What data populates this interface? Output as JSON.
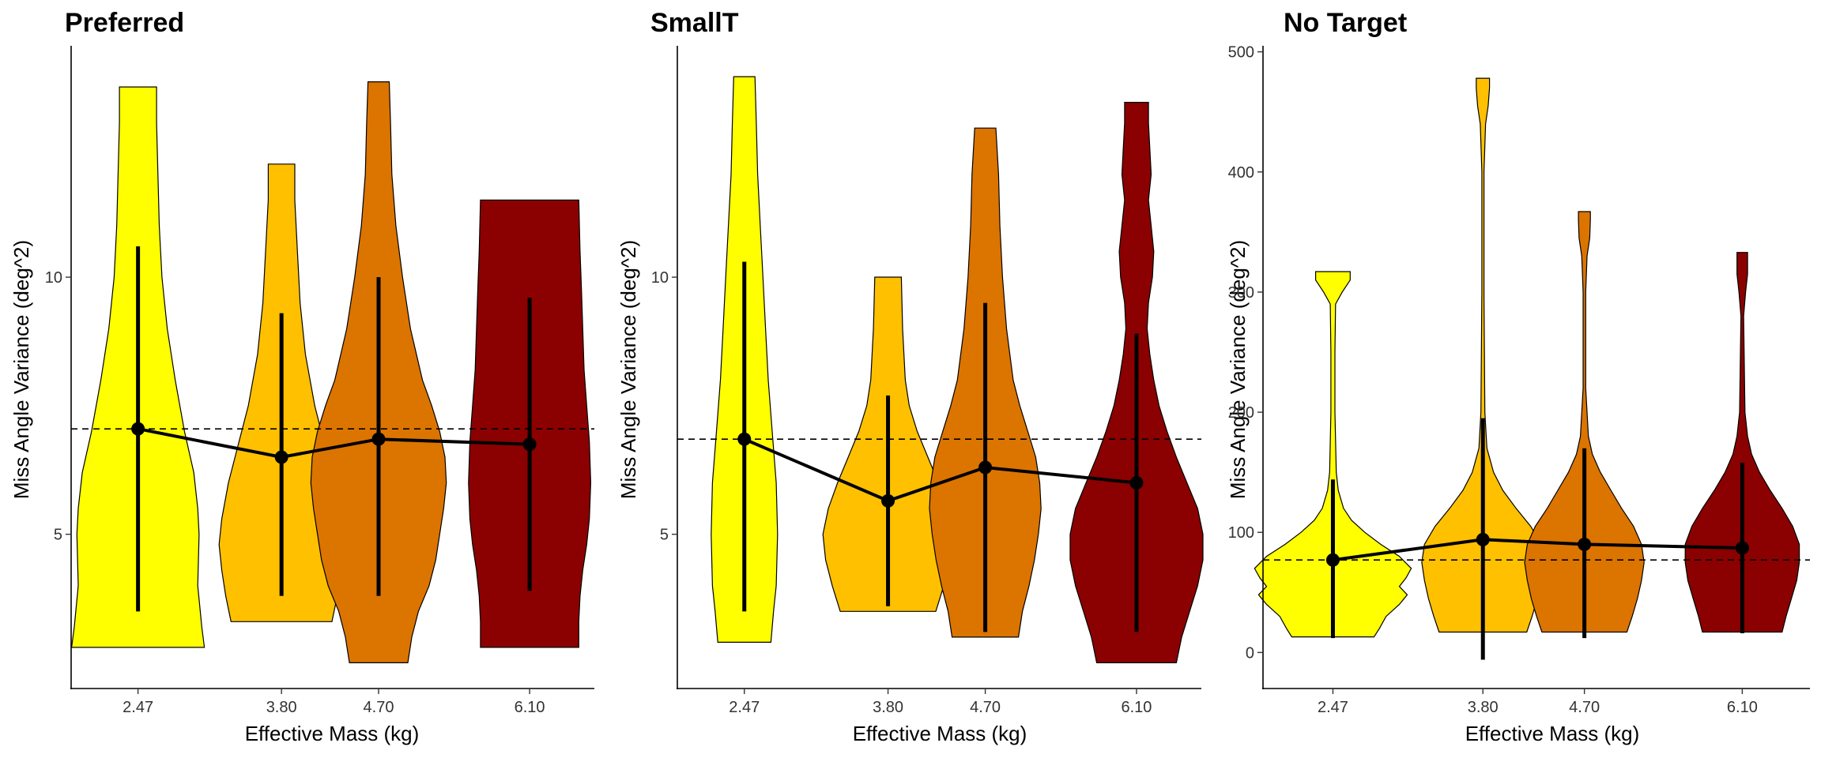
{
  "chart_data": [
    {
      "type": "violin",
      "title": "Preferred",
      "xlabel": "Effective Mass (kg)",
      "ylabel": "Miss Angle Variance (deg^2)",
      "x_tick_labels": [
        "2.47",
        "3.80",
        "4.70",
        "6.10"
      ],
      "x": [
        2.47,
        3.8,
        4.7,
        6.1
      ],
      "xlim": [
        1.85,
        6.7
      ],
      "ylim": [
        2.0,
        14.5
      ],
      "y_ticks": [
        5,
        10
      ],
      "y_tick_labels": [
        "5",
        "10"
      ],
      "reference_line": 7.05,
      "summary_line": {
        "means": [
          7.05,
          6.5,
          6.85,
          6.75
        ],
        "error_low": [
          3.5,
          3.8,
          3.8,
          3.9
        ],
        "error_high": [
          10.6,
          9.3,
          10.0,
          9.6
        ]
      },
      "violins": [
        {
          "x": 2.47,
          "color": "#FFFF00",
          "min": 2.8,
          "max": 13.7,
          "profile": [
            [
              2.8,
              0.5
            ],
            [
              3.2,
              0.48
            ],
            [
              4.0,
              0.45
            ],
            [
              5.0,
              0.46
            ],
            [
              5.5,
              0.45
            ],
            [
              6.2,
              0.42
            ],
            [
              7.0,
              0.35
            ],
            [
              8.0,
              0.28
            ],
            [
              9.0,
              0.22
            ],
            [
              10.0,
              0.18
            ],
            [
              11.0,
              0.16
            ],
            [
              12.0,
              0.15
            ],
            [
              13.0,
              0.14
            ],
            [
              13.7,
              0.14
            ]
          ]
        },
        {
          "x": 3.8,
          "color": "#FFC000",
          "min": 3.3,
          "max": 12.2,
          "profile": [
            [
              3.3,
              0.38
            ],
            [
              3.8,
              0.42
            ],
            [
              4.3,
              0.45
            ],
            [
              4.8,
              0.47
            ],
            [
              5.3,
              0.45
            ],
            [
              6.0,
              0.4
            ],
            [
              6.8,
              0.32
            ],
            [
              7.5,
              0.25
            ],
            [
              8.5,
              0.18
            ],
            [
              9.5,
              0.14
            ],
            [
              10.5,
              0.12
            ],
            [
              11.5,
              0.1
            ],
            [
              12.2,
              0.1
            ]
          ]
        },
        {
          "x": 4.7,
          "color": "#DC7400",
          "min": 2.5,
          "max": 13.8,
          "profile": [
            [
              2.5,
              0.22
            ],
            [
              3.0,
              0.25
            ],
            [
              3.5,
              0.3
            ],
            [
              4.0,
              0.38
            ],
            [
              4.5,
              0.43
            ],
            [
              5.0,
              0.46
            ],
            [
              5.5,
              0.49
            ],
            [
              6.0,
              0.51
            ],
            [
              6.5,
              0.5
            ],
            [
              7.0,
              0.46
            ],
            [
              7.5,
              0.4
            ],
            [
              8.0,
              0.33
            ],
            [
              9.0,
              0.24
            ],
            [
              10.0,
              0.18
            ],
            [
              11.0,
              0.13
            ],
            [
              12.0,
              0.1
            ],
            [
              13.0,
              0.09
            ],
            [
              13.8,
              0.08
            ]
          ]
        },
        {
          "x": 6.1,
          "color": "#8B0000",
          "min": 2.8,
          "max": 11.5,
          "profile": [
            [
              2.8,
              0.37
            ],
            [
              3.3,
              0.37
            ],
            [
              3.8,
              0.38
            ],
            [
              4.3,
              0.4
            ],
            [
              4.8,
              0.43
            ],
            [
              5.3,
              0.45
            ],
            [
              6.0,
              0.46
            ],
            [
              6.8,
              0.45
            ],
            [
              7.5,
              0.43
            ],
            [
              8.2,
              0.41
            ],
            [
              9.0,
              0.4
            ],
            [
              9.8,
              0.39
            ],
            [
              10.5,
              0.38
            ],
            [
              11.5,
              0.37
            ]
          ]
        }
      ]
    },
    {
      "type": "violin",
      "title": "SmallT",
      "xlabel": "Effective Mass (kg)",
      "ylabel": "Miss Angle Variance (deg^2)",
      "x_tick_labels": [
        "2.47",
        "3.80",
        "4.70",
        "6.10"
      ],
      "x": [
        2.47,
        3.8,
        4.7,
        6.1
      ],
      "xlim": [
        1.85,
        6.7
      ],
      "ylim": [
        2.0,
        14.5
      ],
      "y_ticks": [
        5,
        10
      ],
      "y_tick_labels": [
        "5",
        "10"
      ],
      "reference_line": 6.85,
      "summary_line": {
        "means": [
          6.85,
          5.65,
          6.3,
          6.0
        ],
        "error_low": [
          3.5,
          3.6,
          3.1,
          3.1
        ],
        "error_high": [
          10.3,
          7.7,
          9.5,
          8.9
        ]
      },
      "violins": [
        {
          "x": 2.47,
          "color": "#FFFF00",
          "min": 2.9,
          "max": 13.9,
          "profile": [
            [
              2.9,
              0.2
            ],
            [
              3.5,
              0.22
            ],
            [
              4.0,
              0.24
            ],
            [
              5.0,
              0.25
            ],
            [
              6.0,
              0.24
            ],
            [
              7.0,
              0.21
            ],
            [
              8.0,
              0.18
            ],
            [
              9.0,
              0.16
            ],
            [
              10.0,
              0.14
            ],
            [
              11.0,
              0.12
            ],
            [
              12.0,
              0.1
            ],
            [
              13.0,
              0.09
            ],
            [
              13.9,
              0.08
            ]
          ]
        },
        {
          "x": 3.8,
          "color": "#FFC000",
          "min": 3.5,
          "max": 10.0,
          "profile": [
            [
              3.5,
              0.36
            ],
            [
              4.0,
              0.42
            ],
            [
              4.5,
              0.47
            ],
            [
              5.0,
              0.49
            ],
            [
              5.5,
              0.45
            ],
            [
              6.0,
              0.38
            ],
            [
              6.5,
              0.3
            ],
            [
              7.0,
              0.22
            ],
            [
              7.5,
              0.16
            ],
            [
              8.0,
              0.13
            ],
            [
              9.0,
              0.11
            ],
            [
              10.0,
              0.1
            ]
          ]
        },
        {
          "x": 4.7,
          "color": "#DC7400",
          "min": 3.0,
          "max": 12.9,
          "profile": [
            [
              3.0,
              0.25
            ],
            [
              3.5,
              0.28
            ],
            [
              4.0,
              0.33
            ],
            [
              4.5,
              0.37
            ],
            [
              5.0,
              0.4
            ],
            [
              5.5,
              0.42
            ],
            [
              6.0,
              0.41
            ],
            [
              6.5,
              0.38
            ],
            [
              7.0,
              0.32
            ],
            [
              7.5,
              0.26
            ],
            [
              8.0,
              0.21
            ],
            [
              9.0,
              0.16
            ],
            [
              10.0,
              0.13
            ],
            [
              11.0,
              0.11
            ],
            [
              12.0,
              0.1
            ],
            [
              12.9,
              0.08
            ]
          ]
        },
        {
          "x": 6.1,
          "color": "#8B0000",
          "min": 2.5,
          "max": 13.4,
          "profile": [
            [
              2.5,
              0.3
            ],
            [
              3.0,
              0.34
            ],
            [
              3.5,
              0.4
            ],
            [
              4.0,
              0.46
            ],
            [
              4.5,
              0.5
            ],
            [
              5.0,
              0.5
            ],
            [
              5.5,
              0.46
            ],
            [
              6.0,
              0.38
            ],
            [
              6.5,
              0.3
            ],
            [
              7.0,
              0.23
            ],
            [
              7.5,
              0.17
            ],
            [
              8.0,
              0.13
            ],
            [
              8.5,
              0.1
            ],
            [
              9.0,
              0.08
            ],
            [
              9.5,
              0.09
            ],
            [
              10.0,
              0.12
            ],
            [
              10.5,
              0.13
            ],
            [
              11.0,
              0.11
            ],
            [
              11.5,
              0.09
            ],
            [
              12.0,
              0.11
            ],
            [
              12.5,
              0.1
            ],
            [
              13.0,
              0.09
            ],
            [
              13.4,
              0.09
            ]
          ]
        }
      ]
    },
    {
      "type": "violin",
      "title": "No Target",
      "xlabel": "Effective Mass (kg)",
      "ylabel": "Miss Angle Variance (deg^2)",
      "x_tick_labels": [
        "2.47",
        "3.80",
        "4.70",
        "6.10"
      ],
      "x": [
        2.47,
        3.8,
        4.7,
        6.1
      ],
      "xlim": [
        1.85,
        6.7
      ],
      "ylim": [
        -30,
        505
      ],
      "y_ticks": [
        0,
        100,
        200,
        300,
        400,
        500
      ],
      "y_tick_labels": [
        "0",
        "100",
        "200",
        "300",
        "400",
        "500"
      ],
      "reference_line": 77,
      "summary_line": {
        "means": [
          77,
          94,
          90,
          87
        ],
        "error_low": [
          12,
          -6,
          12,
          16
        ],
        "error_high": [
          144,
          195,
          170,
          158
        ]
      },
      "violins": [
        {
          "x": 2.47,
          "color": "#FFFF00",
          "min": 13,
          "max": 317,
          "profile": [
            [
              13,
              0.31
            ],
            [
              20,
              0.35
            ],
            [
              30,
              0.4
            ],
            [
              40,
              0.5
            ],
            [
              48,
              0.56
            ],
            [
              55,
              0.5
            ],
            [
              62,
              0.55
            ],
            [
              70,
              0.59
            ],
            [
              80,
              0.5
            ],
            [
              90,
              0.36
            ],
            [
              100,
              0.24
            ],
            [
              110,
              0.14
            ],
            [
              120,
              0.08
            ],
            [
              135,
              0.04
            ],
            [
              150,
              0.025
            ],
            [
              200,
              0.015
            ],
            [
              250,
              0.015
            ],
            [
              290,
              0.02
            ],
            [
              300,
              0.07
            ],
            [
              310,
              0.13
            ],
            [
              317,
              0.13
            ]
          ]
        },
        {
          "x": 3.8,
          "color": "#FFC000",
          "min": 17,
          "max": 478,
          "profile": [
            [
              17,
              0.33
            ],
            [
              30,
              0.37
            ],
            [
              45,
              0.41
            ],
            [
              60,
              0.44
            ],
            [
              75,
              0.46
            ],
            [
              90,
              0.44
            ],
            [
              105,
              0.36
            ],
            [
              120,
              0.25
            ],
            [
              135,
              0.15
            ],
            [
              150,
              0.08
            ],
            [
              170,
              0.03
            ],
            [
              200,
              0.015
            ],
            [
              300,
              0.008
            ],
            [
              400,
              0.008
            ],
            [
              440,
              0.02
            ],
            [
              455,
              0.04
            ],
            [
              470,
              0.05
            ],
            [
              478,
              0.05
            ]
          ]
        },
        {
          "x": 4.7,
          "color": "#DC7400",
          "min": 17,
          "max": 367,
          "profile": [
            [
              17,
              0.32
            ],
            [
              30,
              0.36
            ],
            [
              45,
              0.4
            ],
            [
              60,
              0.43
            ],
            [
              75,
              0.45
            ],
            [
              90,
              0.43
            ],
            [
              105,
              0.37
            ],
            [
              120,
              0.28
            ],
            [
              135,
              0.2
            ],
            [
              150,
              0.12
            ],
            [
              165,
              0.06
            ],
            [
              180,
              0.03
            ],
            [
              220,
              0.01
            ],
            [
              300,
              0.01
            ],
            [
              330,
              0.02
            ],
            [
              345,
              0.04
            ],
            [
              360,
              0.045
            ],
            [
              367,
              0.045
            ]
          ]
        },
        {
          "x": 6.1,
          "color": "#8B0000",
          "min": 17,
          "max": 333,
          "profile": [
            [
              17,
              0.3
            ],
            [
              30,
              0.33
            ],
            [
              45,
              0.37
            ],
            [
              60,
              0.41
            ],
            [
              75,
              0.43
            ],
            [
              90,
              0.43
            ],
            [
              105,
              0.38
            ],
            [
              120,
              0.3
            ],
            [
              135,
              0.21
            ],
            [
              150,
              0.13
            ],
            [
              165,
              0.07
            ],
            [
              180,
              0.04
            ],
            [
              200,
              0.02
            ],
            [
              280,
              0.01
            ],
            [
              300,
              0.025
            ],
            [
              315,
              0.04
            ],
            [
              333,
              0.04
            ]
          ]
        }
      ]
    }
  ]
}
